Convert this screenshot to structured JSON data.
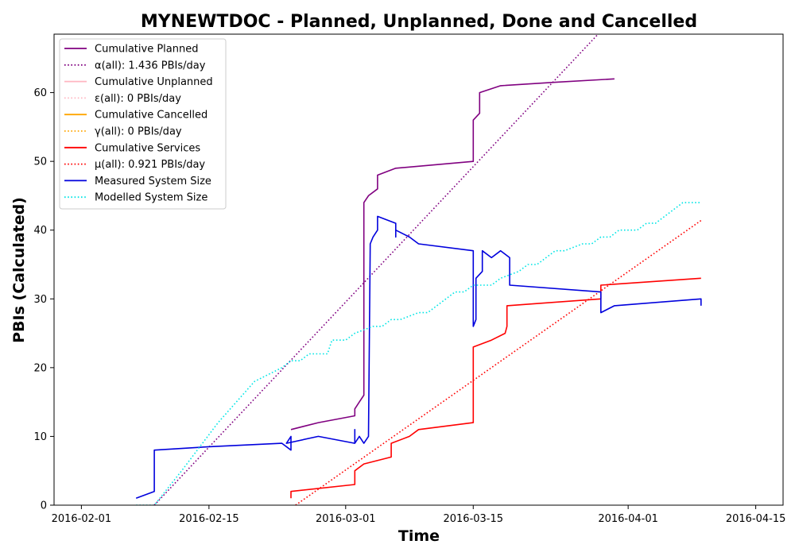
{
  "chart_data": {
    "type": "line",
    "title": "MYNEWTDOC - Planned, Unplanned, Done  and Cancelled",
    "xlabel": "Time",
    "ylabel": "PBIs (Calculated)",
    "xlim": [
      "2016-01-29",
      "2016-04-18"
    ],
    "ylim": [
      0,
      68.5
    ],
    "x_ticks": [
      "2016-02-01",
      "2016-02-15",
      "2016-03-01",
      "2016-03-15",
      "2016-04-01",
      "2016-04-15"
    ],
    "y_ticks": [
      0,
      10,
      20,
      30,
      40,
      50,
      60
    ],
    "grid": false,
    "legend_position": "top-left",
    "series": [
      {
        "name": "Cumulative Planned",
        "color": "#800080",
        "style": "solid",
        "points": [
          [
            "2016-02-24",
            11
          ],
          [
            "2016-02-27",
            12
          ],
          [
            "2016-03-02",
            13
          ],
          [
            "2016-03-02",
            14
          ],
          [
            "2016-03-02.5",
            15
          ],
          [
            "2016-03-03",
            16
          ],
          [
            "2016-03-03",
            44
          ],
          [
            "2016-03-03.5",
            45
          ],
          [
            "2016-03-04.5",
            46
          ],
          [
            "2016-03-04.5",
            48
          ],
          [
            "2016-03-06.5",
            49
          ],
          [
            "2016-03-15",
            50
          ],
          [
            "2016-03-15",
            56
          ],
          [
            "2016-03-15.7",
            57
          ],
          [
            "2016-03-15.7",
            60
          ],
          [
            "2016-03-18",
            61
          ],
          [
            "2016-03-24",
            61.5
          ],
          [
            "2016-03-30.5",
            62
          ]
        ]
      },
      {
        "name": "α(all): 1.436 PBIs/day",
        "color": "#800080",
        "style": "dotted",
        "points": [
          [
            "2016-02-09",
            0
          ],
          [
            "2016-03-28.7",
            68.5
          ]
        ]
      },
      {
        "name": "Cumulative Unplanned",
        "color": "#ffb6c1",
        "style": "solid",
        "points": []
      },
      {
        "name": "ε(all): 0 PBIs/day",
        "color": "#ffb6c1",
        "style": "dotted",
        "points": []
      },
      {
        "name": "Cumulative Cancelled",
        "color": "#ffa500",
        "style": "solid",
        "points": []
      },
      {
        "name": "γ(all): 0 PBIs/day",
        "color": "#ffa500",
        "style": "dotted",
        "points": []
      },
      {
        "name": "Cumulative Services",
        "color": "#ff0000",
        "style": "solid",
        "points": [
          [
            "2016-02-24",
            1
          ],
          [
            "2016-02-24",
            2
          ],
          [
            "2016-03-02",
            3
          ],
          [
            "2016-03-02",
            5
          ],
          [
            "2016-03-03",
            6
          ],
          [
            "2016-03-06",
            7
          ],
          [
            "2016-03-06",
            9
          ],
          [
            "2016-03-08",
            10
          ],
          [
            "2016-03-09",
            11
          ],
          [
            "2016-03-15",
            12
          ],
          [
            "2016-03-15",
            23
          ],
          [
            "2016-03-17",
            24
          ],
          [
            "2016-03-18.5",
            25
          ],
          [
            "2016-03-18.7",
            26
          ],
          [
            "2016-03-18.7",
            29
          ],
          [
            "2016-03-29",
            30
          ],
          [
            "2016-03-29",
            32
          ],
          [
            "2016-04-09",
            33
          ]
        ]
      },
      {
        "name": "μ(all): 0.921 PBIs/day",
        "color": "#ff0000",
        "style": "dotted",
        "points": [
          [
            "2016-02-24.5",
            0
          ],
          [
            "2016-04-09",
            41.4
          ]
        ]
      },
      {
        "name": "Measured System Size",
        "color": "#0000dd",
        "style": "solid",
        "points": [
          [
            "2016-02-07",
            1
          ],
          [
            "2016-02-09",
            2
          ],
          [
            "2016-02-09",
            8
          ],
          [
            "2016-02-15",
            8.5
          ],
          [
            "2016-02-23",
            9
          ],
          [
            "2016-02-24",
            8
          ],
          [
            "2016-02-24",
            10
          ],
          [
            "2016-02-23.5",
            9
          ],
          [
            "2016-02-27",
            10
          ],
          [
            "2016-03-02",
            9
          ],
          [
            "2016-03-02",
            11
          ],
          [
            "2016-03-02",
            9
          ],
          [
            "2016-03-02.5",
            10
          ],
          [
            "2016-03-03",
            9
          ],
          [
            "2016-03-03.5",
            10
          ],
          [
            "2016-03-03.7",
            38
          ],
          [
            "2016-03-04",
            39
          ],
          [
            "2016-03-04.5",
            40
          ],
          [
            "2016-03-04.5",
            42
          ],
          [
            "2016-03-06.5",
            41
          ],
          [
            "2016-03-06.5",
            39
          ],
          [
            "2016-03-06.5",
            40
          ],
          [
            "2016-03-08",
            39
          ],
          [
            "2016-03-09",
            38
          ],
          [
            "2016-03-15",
            37
          ],
          [
            "2016-03-15",
            26
          ],
          [
            "2016-03-15.3",
            27
          ],
          [
            "2016-03-15.3",
            33
          ],
          [
            "2016-03-16",
            34
          ],
          [
            "2016-03-16",
            37
          ],
          [
            "2016-03-17",
            36
          ],
          [
            "2016-03-18",
            37
          ],
          [
            "2016-03-19",
            36
          ],
          [
            "2016-03-19",
            32
          ],
          [
            "2016-03-29",
            31
          ],
          [
            "2016-03-29",
            28
          ],
          [
            "2016-03-30.5",
            29
          ],
          [
            "2016-04-09",
            30
          ],
          [
            "2016-04-09",
            29
          ]
        ]
      },
      {
        "name": "Modelled System Size",
        "color": "#00e5e5",
        "style": "dotted",
        "points": [
          [
            "2016-02-07",
            0
          ],
          [
            "2016-02-09",
            0
          ],
          [
            "2016-02-12",
            5
          ],
          [
            "2016-02-16",
            12
          ],
          [
            "2016-02-20",
            18
          ],
          [
            "2016-02-23",
            20
          ],
          [
            "2016-02-24",
            21
          ],
          [
            "2016-02-25",
            21
          ],
          [
            "2016-02-26",
            22
          ],
          [
            "2016-02-28",
            22
          ],
          [
            "2016-02-28.5",
            24
          ],
          [
            "2016-03-01",
            24
          ],
          [
            "2016-03-02",
            25
          ],
          [
            "2016-03-04",
            26
          ],
          [
            "2016-03-05",
            26
          ],
          [
            "2016-03-06",
            27
          ],
          [
            "2016-03-07",
            27
          ],
          [
            "2016-03-09",
            28
          ],
          [
            "2016-03-10",
            28
          ],
          [
            "2016-03-12",
            30
          ],
          [
            "2016-03-13",
            31
          ],
          [
            "2016-03-14",
            31
          ],
          [
            "2016-03-15",
            32
          ],
          [
            "2016-03-17",
            32
          ],
          [
            "2016-03-18",
            33
          ],
          [
            "2016-03-20",
            34
          ],
          [
            "2016-03-21",
            35
          ],
          [
            "2016-03-22",
            35
          ],
          [
            "2016-03-24",
            37
          ],
          [
            "2016-03-25",
            37
          ],
          [
            "2016-03-27",
            38
          ],
          [
            "2016-03-28",
            38
          ],
          [
            "2016-03-29",
            39
          ],
          [
            "2016-03-30",
            39
          ],
          [
            "2016-03-31",
            40
          ],
          [
            "2016-04-02",
            40
          ],
          [
            "2016-04-03",
            41
          ],
          [
            "2016-04-04",
            41
          ],
          [
            "2016-04-06",
            43
          ],
          [
            "2016-04-07",
            44
          ],
          [
            "2016-04-09",
            44
          ]
        ]
      }
    ]
  }
}
